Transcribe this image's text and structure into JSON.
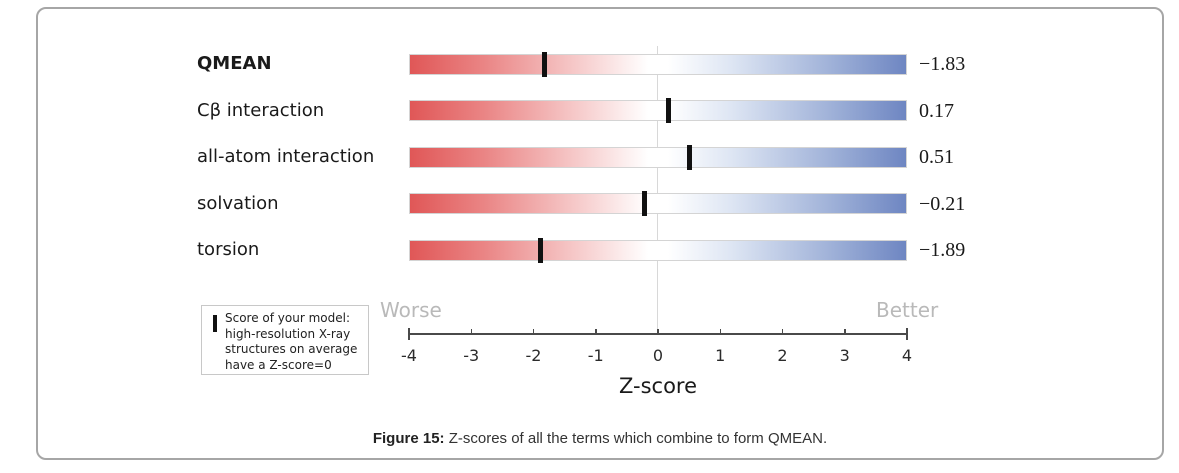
{
  "figure": {
    "caption_label": "Figure 15:",
    "caption_text": " Z-scores of all the terms which combine to form QMEAN."
  },
  "chart_data": {
    "type": "bar",
    "orientation": "horizontal",
    "title": "",
    "xlabel": "Z-score",
    "xlim": [
      -4,
      4
    ],
    "xticks": [
      -4,
      -3,
      -2,
      -1,
      0,
      1,
      2,
      3,
      4
    ],
    "xtick_labels": [
      "-4",
      "-3",
      "-2",
      "-1",
      "0",
      "1",
      "2",
      "3",
      "4"
    ],
    "categories": [
      "QMEAN",
      "Cβ interaction",
      "all-atom interaction",
      "solvation",
      "torsion"
    ],
    "values": [
      -1.83,
      0.17,
      0.51,
      -0.21,
      -1.89
    ],
    "value_labels": [
      "−1.83",
      "0.17",
      "0.51",
      "−0.21",
      "−1.89"
    ],
    "bold_category_index": 0,
    "grid": "zero-line-only",
    "legend_position": "bottom-left",
    "annotations": {
      "worse": "Worse",
      "better": "Better"
    },
    "legend": {
      "marker": "score-marker",
      "lines": [
        "Score of your model:",
        "high-resolution X-ray",
        "structures on average",
        "have a Z-score=0"
      ]
    },
    "colors": {
      "bar_red": "#e05757",
      "bar_blue": "#6e86c2",
      "marker": "#111111",
      "muted_labels": "#b9b9b9",
      "axis": "#4a4a4a",
      "panel_border": "#a6a6a6"
    }
  }
}
